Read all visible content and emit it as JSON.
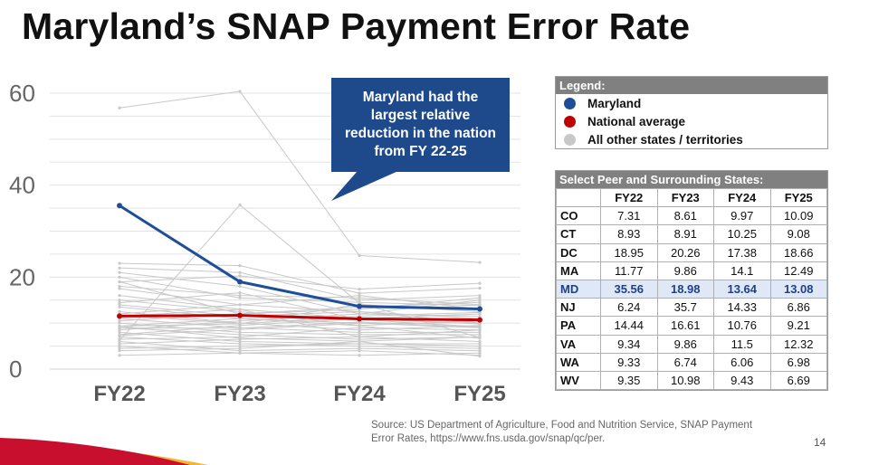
{
  "title": "Maryland’s SNAP Payment Error Rate",
  "callout": "Maryland had the largest relative reduction in the nation from FY 22-25",
  "legend": {
    "header": "Legend:",
    "items": [
      {
        "label": "Maryland",
        "color": "#1f4e99"
      },
      {
        "label": "National average",
        "color": "#c00000"
      },
      {
        "label": "All other states / territories",
        "color": "#c8c8c8"
      }
    ]
  },
  "table": {
    "header": "Select Peer and Surrounding States:",
    "columns": [
      "",
      "FY22",
      "FY23",
      "FY24",
      "FY25"
    ],
    "rows": [
      {
        "state": "CO",
        "values": [
          "7.31",
          "8.61",
          "9.97",
          "10.09"
        ]
      },
      {
        "state": "CT",
        "values": [
          "8.93",
          "8.91",
          "10.25",
          "9.08"
        ]
      },
      {
        "state": "DC",
        "values": [
          "18.95",
          "20.26",
          "17.38",
          "18.66"
        ]
      },
      {
        "state": "MA",
        "values": [
          "11.77",
          "9.86",
          "14.1",
          "12.49"
        ]
      },
      {
        "state": "MD",
        "values": [
          "35.56",
          "18.98",
          "13.64",
          "13.08"
        ],
        "highlight": true
      },
      {
        "state": "NJ",
        "values": [
          "6.24",
          "35.7",
          "14.33",
          "6.86"
        ]
      },
      {
        "state": "PA",
        "values": [
          "14.44",
          "16.61",
          "10.76",
          "9.21"
        ]
      },
      {
        "state": "VA",
        "values": [
          "9.34",
          "9.86",
          "11.5",
          "12.32"
        ]
      },
      {
        "state": "WA",
        "values": [
          "9.33",
          "6.74",
          "6.06",
          "6.98"
        ]
      },
      {
        "state": "WV",
        "values": [
          "9.35",
          "10.98",
          "9.43",
          "6.69"
        ]
      }
    ]
  },
  "source": "Source: US Department of Agriculture, Food and Nutrition Service, SNAP Payment Error Rates, https://www.fns.usda.gov/snap/qc/per.",
  "page_number": "14",
  "colors": {
    "maryland": "#1f4e99",
    "national": "#c00000",
    "other": "#c8c8c8",
    "callout": "#1e4a8c",
    "swoosh_red": "#c8102e",
    "swoosh_gold": "#f2b632"
  },
  "chart_data": {
    "type": "line",
    "categories": [
      "FY22",
      "FY23",
      "FY24",
      "FY25"
    ],
    "ylim": [
      0,
      60
    ],
    "yticks": [
      0,
      20,
      40,
      60
    ],
    "grid": true,
    "legend_placement": "right",
    "series": [
      {
        "name": "Maryland",
        "values": [
          35.56,
          18.98,
          13.64,
          13.08
        ],
        "role": "highlight"
      },
      {
        "name": "National average",
        "values": [
          11.54,
          11.68,
          10.93,
          10.7
        ],
        "role": "average"
      },
      {
        "name": "CO",
        "values": [
          7.31,
          8.61,
          9.97,
          10.09
        ],
        "role": "other"
      },
      {
        "name": "CT",
        "values": [
          8.93,
          8.91,
          10.25,
          9.08
        ],
        "role": "other"
      },
      {
        "name": "DC",
        "values": [
          18.95,
          20.26,
          17.38,
          18.66
        ],
        "role": "other"
      },
      {
        "name": "MA",
        "values": [
          11.77,
          9.86,
          14.1,
          12.49
        ],
        "role": "other"
      },
      {
        "name": "NJ",
        "values": [
          6.24,
          35.7,
          14.33,
          6.86
        ],
        "role": "other"
      },
      {
        "name": "PA",
        "values": [
          14.44,
          16.61,
          10.76,
          9.21
        ],
        "role": "other"
      },
      {
        "name": "VA",
        "values": [
          9.34,
          9.86,
          11.5,
          12.32
        ],
        "role": "other"
      },
      {
        "name": "WA",
        "values": [
          9.33,
          6.74,
          6.06,
          6.98
        ],
        "role": "other"
      },
      {
        "name": "WV",
        "values": [
          9.35,
          10.98,
          9.43,
          6.69
        ],
        "role": "other"
      },
      {
        "values": [
          56.8,
          60.4,
          24.7,
          23.2
        ],
        "role": "other"
      },
      {
        "values": [
          23.0,
          22.5,
          16.5,
          17.6
        ],
        "role": "other"
      },
      {
        "values": [
          22.0,
          21.0,
          15.0,
          16.0
        ],
        "role": "other"
      },
      {
        "values": [
          21.0,
          18.0,
          12.0,
          15.0
        ],
        "role": "other"
      },
      {
        "values": [
          20.0,
          15.5,
          14.5,
          13.8
        ],
        "role": "other"
      },
      {
        "values": [
          19.0,
          12.0,
          13.0,
          15.5
        ],
        "role": "other"
      },
      {
        "values": [
          17.5,
          14.0,
          12.5,
          11.0
        ],
        "role": "other"
      },
      {
        "values": [
          16.0,
          13.0,
          11.0,
          12.0
        ],
        "role": "other"
      },
      {
        "values": [
          15.0,
          12.5,
          9.5,
          10.5
        ],
        "role": "other"
      },
      {
        "values": [
          13.5,
          11.0,
          10.0,
          9.0
        ],
        "role": "other"
      },
      {
        "values": [
          12.5,
          10.0,
          8.5,
          9.5
        ],
        "role": "other"
      },
      {
        "values": [
          11.0,
          9.0,
          8.0,
          8.0
        ],
        "role": "other"
      },
      {
        "values": [
          10.0,
          8.0,
          7.5,
          7.5
        ],
        "role": "other"
      },
      {
        "values": [
          9.0,
          7.5,
          6.5,
          7.0
        ],
        "role": "other"
      },
      {
        "values": [
          8.0,
          6.0,
          5.5,
          5.5
        ],
        "role": "other"
      },
      {
        "values": [
          7.0,
          5.5,
          5.0,
          4.5
        ],
        "role": "other"
      },
      {
        "values": [
          6.0,
          4.0,
          4.5,
          4.0
        ],
        "role": "other"
      },
      {
        "values": [
          5.0,
          3.5,
          3.0,
          3.5
        ],
        "role": "other"
      },
      {
        "values": [
          4.0,
          4.5,
          6.0,
          2.8
        ],
        "role": "other"
      },
      {
        "values": [
          3.0,
          3.5,
          4.0,
          3.0
        ],
        "role": "other"
      },
      {
        "values": [
          10.5,
          12.0,
          13.5,
          14.5
        ],
        "role": "other"
      },
      {
        "values": [
          8.5,
          10.5,
          12.0,
          11.5
        ],
        "role": "other"
      },
      {
        "values": [
          7.5,
          9.5,
          11.0,
          9.8
        ],
        "role": "other"
      },
      {
        "values": [
          12.0,
          14.0,
          16.0,
          13.0
        ],
        "role": "other"
      },
      {
        "values": [
          6.5,
          7.0,
          9.0,
          8.5
        ],
        "role": "other"
      },
      {
        "values": [
          5.5,
          6.5,
          7.0,
          6.0
        ],
        "role": "other"
      },
      {
        "values": [
          4.5,
          5.0,
          5.5,
          5.0
        ],
        "role": "other"
      },
      {
        "values": [
          11.5,
          13.0,
          7.0,
          8.5
        ],
        "role": "other"
      },
      {
        "values": [
          18.0,
          16.0,
          15.5,
          14.0
        ],
        "role": "other"
      },
      {
        "values": [
          14.0,
          11.5,
          12.5,
          10.0
        ],
        "role": "other"
      }
    ]
  }
}
